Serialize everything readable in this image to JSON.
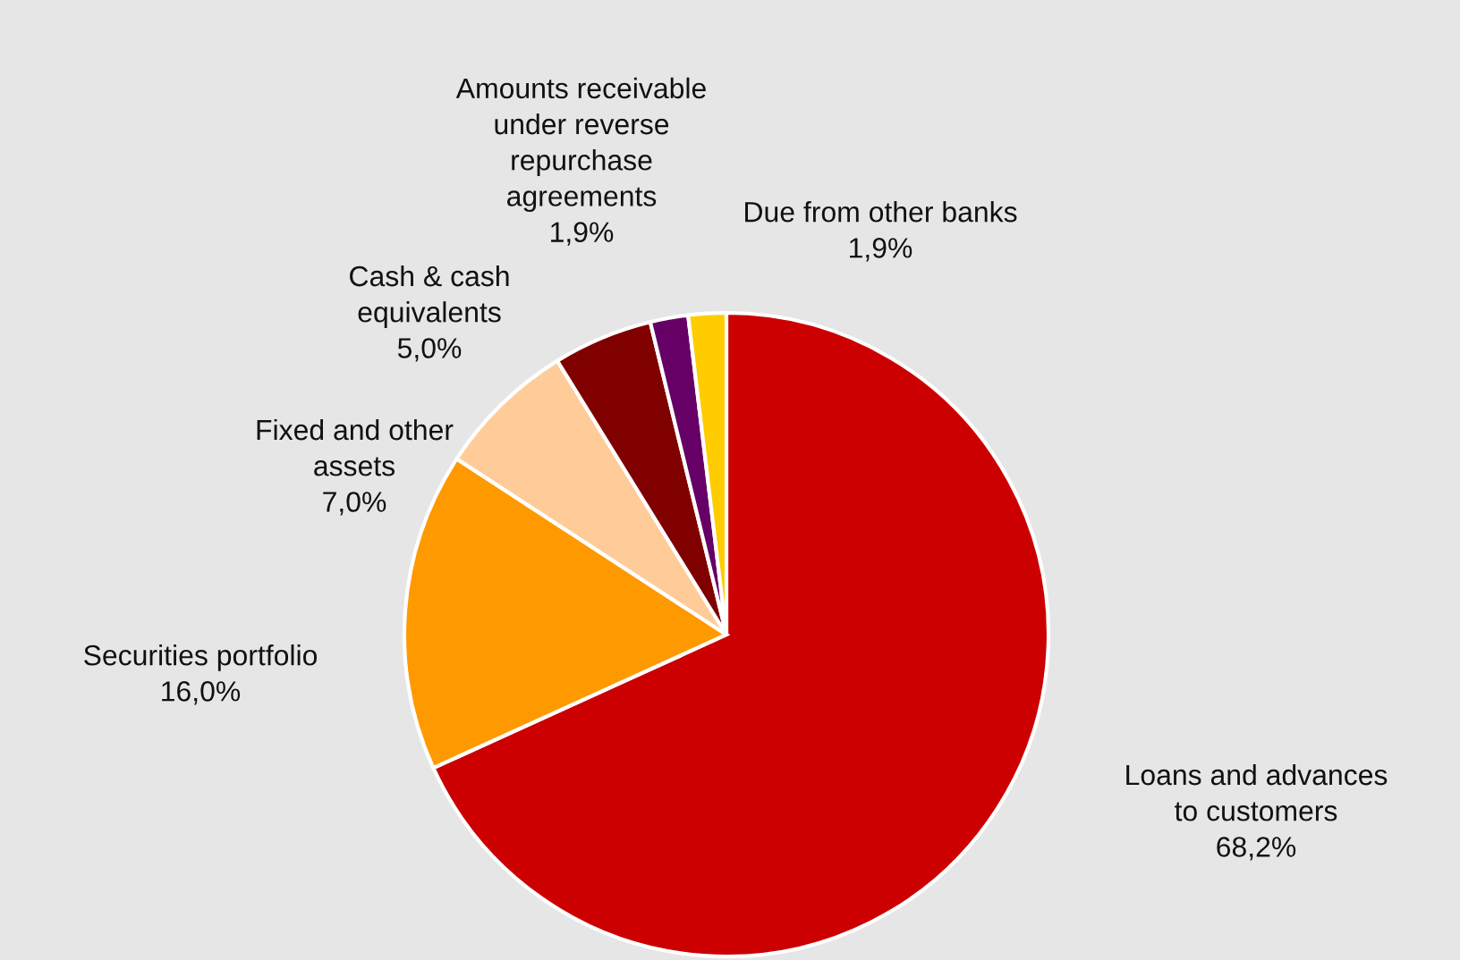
{
  "chart_data": {
    "type": "pie",
    "categories": [
      "Loans and advances\nto customers",
      "Securities portfolio",
      "Fixed and other\nassets",
      "Cash & cash\nequivalents",
      "Amounts receivable\nunder reverse\nrepurchase\nagreements",
      "Due from other banks"
    ],
    "values": [
      68.2,
      16.0,
      7.0,
      5.0,
      1.9,
      1.9
    ],
    "value_labels": [
      "68,2%",
      "16,0%",
      "7,0%",
      "5,0%",
      "1,9%",
      "1,9%"
    ],
    "colors": [
      "#cc0000",
      "#ff9900",
      "#ffcc99",
      "#800000",
      "#660066",
      "#ffcc00"
    ],
    "legend": false
  }
}
